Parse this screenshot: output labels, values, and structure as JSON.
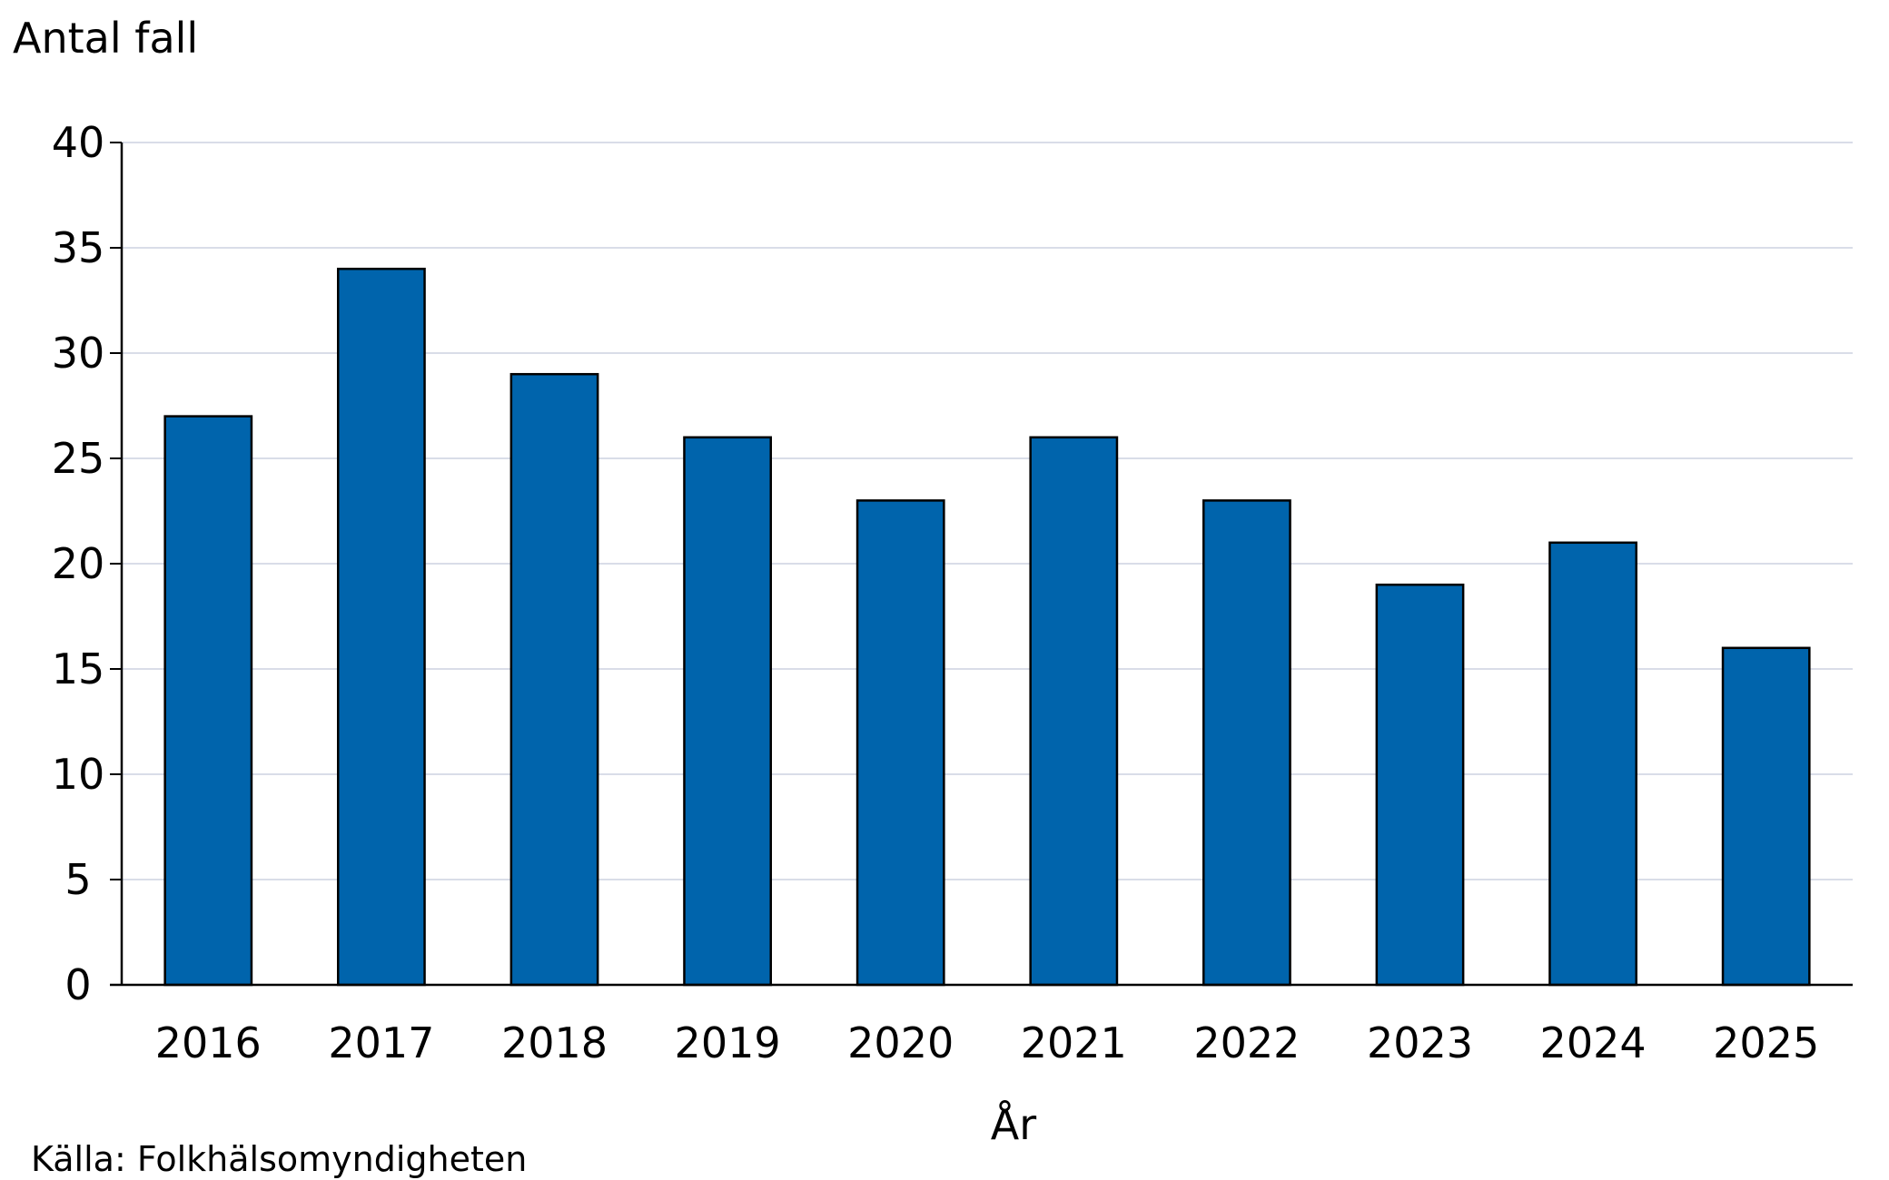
{
  "chart_data": {
    "type": "bar",
    "title": "",
    "ylabel": "Antal fall",
    "xlabel": "År",
    "categories": [
      "2016",
      "2017",
      "2018",
      "2019",
      "2020",
      "2021",
      "2022",
      "2023",
      "2024",
      "2025"
    ],
    "values": [
      27,
      34,
      29,
      26,
      23,
      26,
      23,
      19,
      21,
      16
    ],
    "ylim": [
      0,
      40
    ],
    "yticks": [
      "0",
      "5",
      "10",
      "15",
      "20",
      "25",
      "30",
      "35",
      "40"
    ],
    "grid": true,
    "legend": "none",
    "bar_color": "#0064AC",
    "bar_edge_color": "#000000",
    "grid_color": "#D9DDE8"
  },
  "source": "Källa: Folkhälsomyndigheten"
}
